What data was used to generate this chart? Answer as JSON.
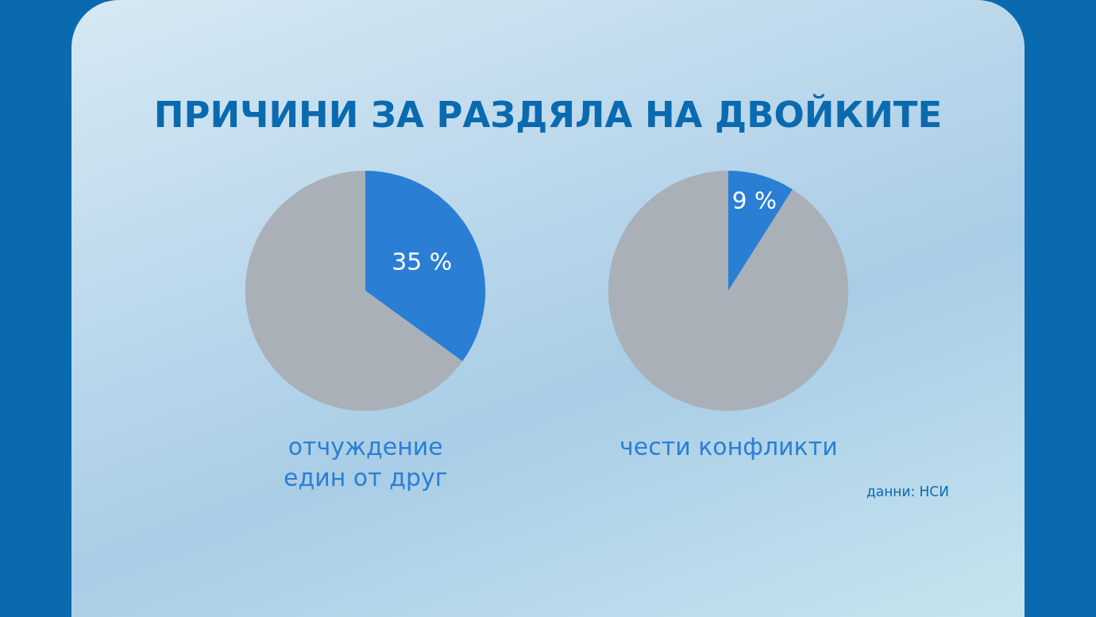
{
  "chart_data": [
    {
      "type": "pie",
      "title": "ПРИЧИНИ ЗА РАЗДЯЛА НА ДВОЙКИТЕ",
      "xlabel": "отчуждение\nедин от друг",
      "categories": [
        null,
        null
      ],
      "values": [
        35,
        65
      ],
      "colors": [
        "#2a7fd4",
        "#a9b0b7"
      ],
      "value_labels": [
        "35 %",
        null
      ],
      "legend": false
    },
    {
      "type": "pie",
      "xlabel": "чести конфликти",
      "categories": [
        null,
        null
      ],
      "values": [
        9,
        91
      ],
      "colors": [
        "#2a7fd4",
        "#a9b0b7"
      ],
      "value_labels": [
        "9 %",
        null
      ],
      "legend": false,
      "annotations": [
        "данни: НСИ"
      ]
    }
  ]
}
